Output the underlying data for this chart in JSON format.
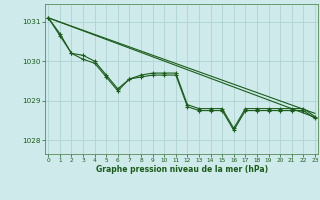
{
  "bg_color": "#cfeaea",
  "grid_color": "#a8d0d0",
  "line_color": "#1a5c1a",
  "xlabel": "Graphe pression niveau de la mer (hPa)",
  "xlabel_color": "#1a5c1a",
  "axis_color": "#5a8a5a",
  "tick_color": "#1a5c1a",
  "ylim": [
    1027.65,
    1031.45
  ],
  "xlim": [
    -0.3,
    23.3
  ],
  "yticks": [
    1028,
    1029,
    1030,
    1031
  ],
  "xticks": [
    0,
    1,
    2,
    3,
    4,
    5,
    6,
    7,
    8,
    9,
    10,
    11,
    12,
    13,
    14,
    15,
    16,
    17,
    18,
    19,
    20,
    21,
    22,
    23
  ],
  "zigzag1_x": [
    0,
    1,
    2,
    3,
    4,
    5,
    6,
    7,
    8,
    9,
    10,
    11,
    12,
    13,
    14,
    15,
    16,
    17,
    18,
    19,
    20,
    21,
    22,
    23
  ],
  "zigzag1_y": [
    1031.1,
    1030.65,
    1030.2,
    1030.05,
    1029.95,
    1029.6,
    1029.25,
    1029.55,
    1029.6,
    1029.65,
    1029.65,
    1029.65,
    1028.85,
    1028.75,
    1028.75,
    1028.75,
    1028.25,
    1028.75,
    1028.75,
    1028.75,
    1028.75,
    1028.75,
    1028.75,
    1028.55
  ],
  "zigzag2_x": [
    0,
    1,
    2,
    3,
    4,
    5,
    6,
    7,
    8,
    9,
    10,
    11,
    12,
    13,
    14,
    15,
    16,
    17,
    18,
    19,
    20,
    21,
    22,
    23
  ],
  "zigzag2_y": [
    1031.1,
    1030.7,
    1030.2,
    1030.15,
    1030.0,
    1029.65,
    1029.3,
    1029.55,
    1029.65,
    1029.7,
    1029.7,
    1029.7,
    1028.9,
    1028.8,
    1028.8,
    1028.8,
    1028.3,
    1028.8,
    1028.8,
    1028.8,
    1028.8,
    1028.8,
    1028.8,
    1028.6
  ],
  "trend1_x": [
    0,
    23
  ],
  "trend1_y": [
    1031.1,
    1028.58
  ],
  "trend2_x": [
    0,
    23
  ],
  "trend2_y": [
    1031.1,
    1028.68
  ]
}
